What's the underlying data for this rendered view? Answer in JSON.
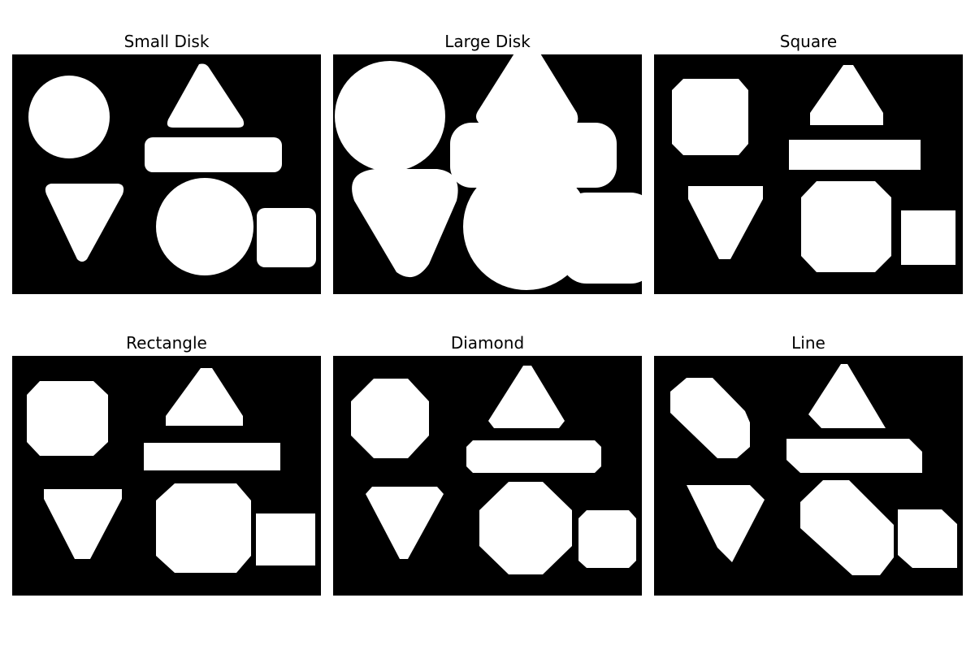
{
  "panels": [
    {
      "title": "Small Disk"
    },
    {
      "title": "Large Disk"
    },
    {
      "title": "Square"
    },
    {
      "title": "Rectangle"
    },
    {
      "title": "Diamond"
    },
    {
      "title": "Line"
    }
  ],
  "colors": {
    "foreground": "#ffffff",
    "background": "#000000"
  }
}
